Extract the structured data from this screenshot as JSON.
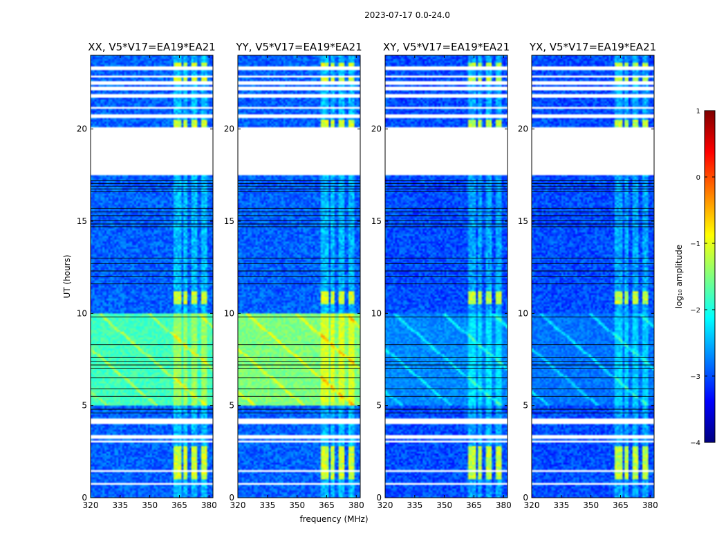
{
  "chart_data": {
    "type": "heatmap",
    "suptitle": "2023-07-17 0.0-24.0",
    "xlabel": "frequency (MHz)",
    "ylabel": "UT (hours)",
    "xlim": [
      320,
      382
    ],
    "ylim": [
      0,
      24
    ],
    "xticks": [
      320,
      335,
      350,
      365,
      380
    ],
    "yticks": [
      0,
      5,
      10,
      15,
      20
    ],
    "xtick_labels": [
      "320",
      "335",
      "350",
      "365",
      "380"
    ],
    "ytick_labels": [
      "0",
      "5",
      "10",
      "15",
      "20"
    ],
    "panels": [
      {
        "title": "XX, V5*V17=EA19*EA21",
        "pol": "XX"
      },
      {
        "title": "YY, V5*V17=EA19*EA21",
        "pol": "YY"
      },
      {
        "title": "XY, V5*V17=EA19*EA21",
        "pol": "XY"
      },
      {
        "title": "YX, V5*V17=EA19*EA21",
        "pol": "YX"
      }
    ],
    "colorbar": {
      "label": "log₁₀ amplitude",
      "range": [
        -4,
        1
      ],
      "ticks": [
        1,
        0,
        -1,
        -2,
        -3,
        -4
      ],
      "tick_labels": [
        "1",
        "0",
        "−1",
        "−2",
        "−3",
        "−4"
      ],
      "colormap": "jet"
    },
    "data_gaps_hours": [
      [
        17.5,
        20.1
      ],
      [
        20.6,
        20.8
      ],
      [
        21.1,
        21.2
      ],
      [
        21.7,
        21.85
      ],
      [
        22.15,
        22.25
      ],
      [
        22.45,
        22.6
      ],
      [
        22.8,
        22.9
      ],
      [
        23.2,
        23.35
      ],
      [
        4.05,
        4.25
      ],
      [
        3.2,
        3.4
      ],
      [
        3.05,
        3.1
      ],
      [
        1.4,
        1.5
      ],
      [
        0.75,
        0.85
      ]
    ],
    "flag_lines_hours": [
      16.6,
      16.75,
      16.9,
      17.05,
      17.2,
      14.7,
      14.85,
      15.05,
      15.3,
      15.5,
      15.7,
      13.0,
      12.7,
      12.3,
      12.0,
      11.6,
      9.8,
      8.3,
      7.6,
      7.4,
      7.2,
      7.0,
      6.5,
      5.9,
      5.5,
      4.8,
      4.6
    ],
    "rfi_channels_mhz": [
      [
        362,
        366
      ],
      [
        367.5,
        369
      ],
      [
        371,
        374
      ],
      [
        376,
        379
      ]
    ],
    "strong_rfi_hours": [
      [
        1.0,
        2.8
      ],
      [
        10.5,
        11.2
      ],
      [
        20.1,
        20.5
      ],
      [
        22.6,
        22.8
      ],
      [
        23.4,
        23.6
      ]
    ],
    "background_level": {
      "XX": -2.9,
      "YY": -2.9,
      "XY": -3.0,
      "YX": -3.0
    },
    "arc_feature_hours": [
      5.0,
      10.0
    ],
    "arc_feature_level": {
      "XX": -1.8,
      "YY": -1.5,
      "XY": -2.7,
      "YX": -2.8
    }
  }
}
